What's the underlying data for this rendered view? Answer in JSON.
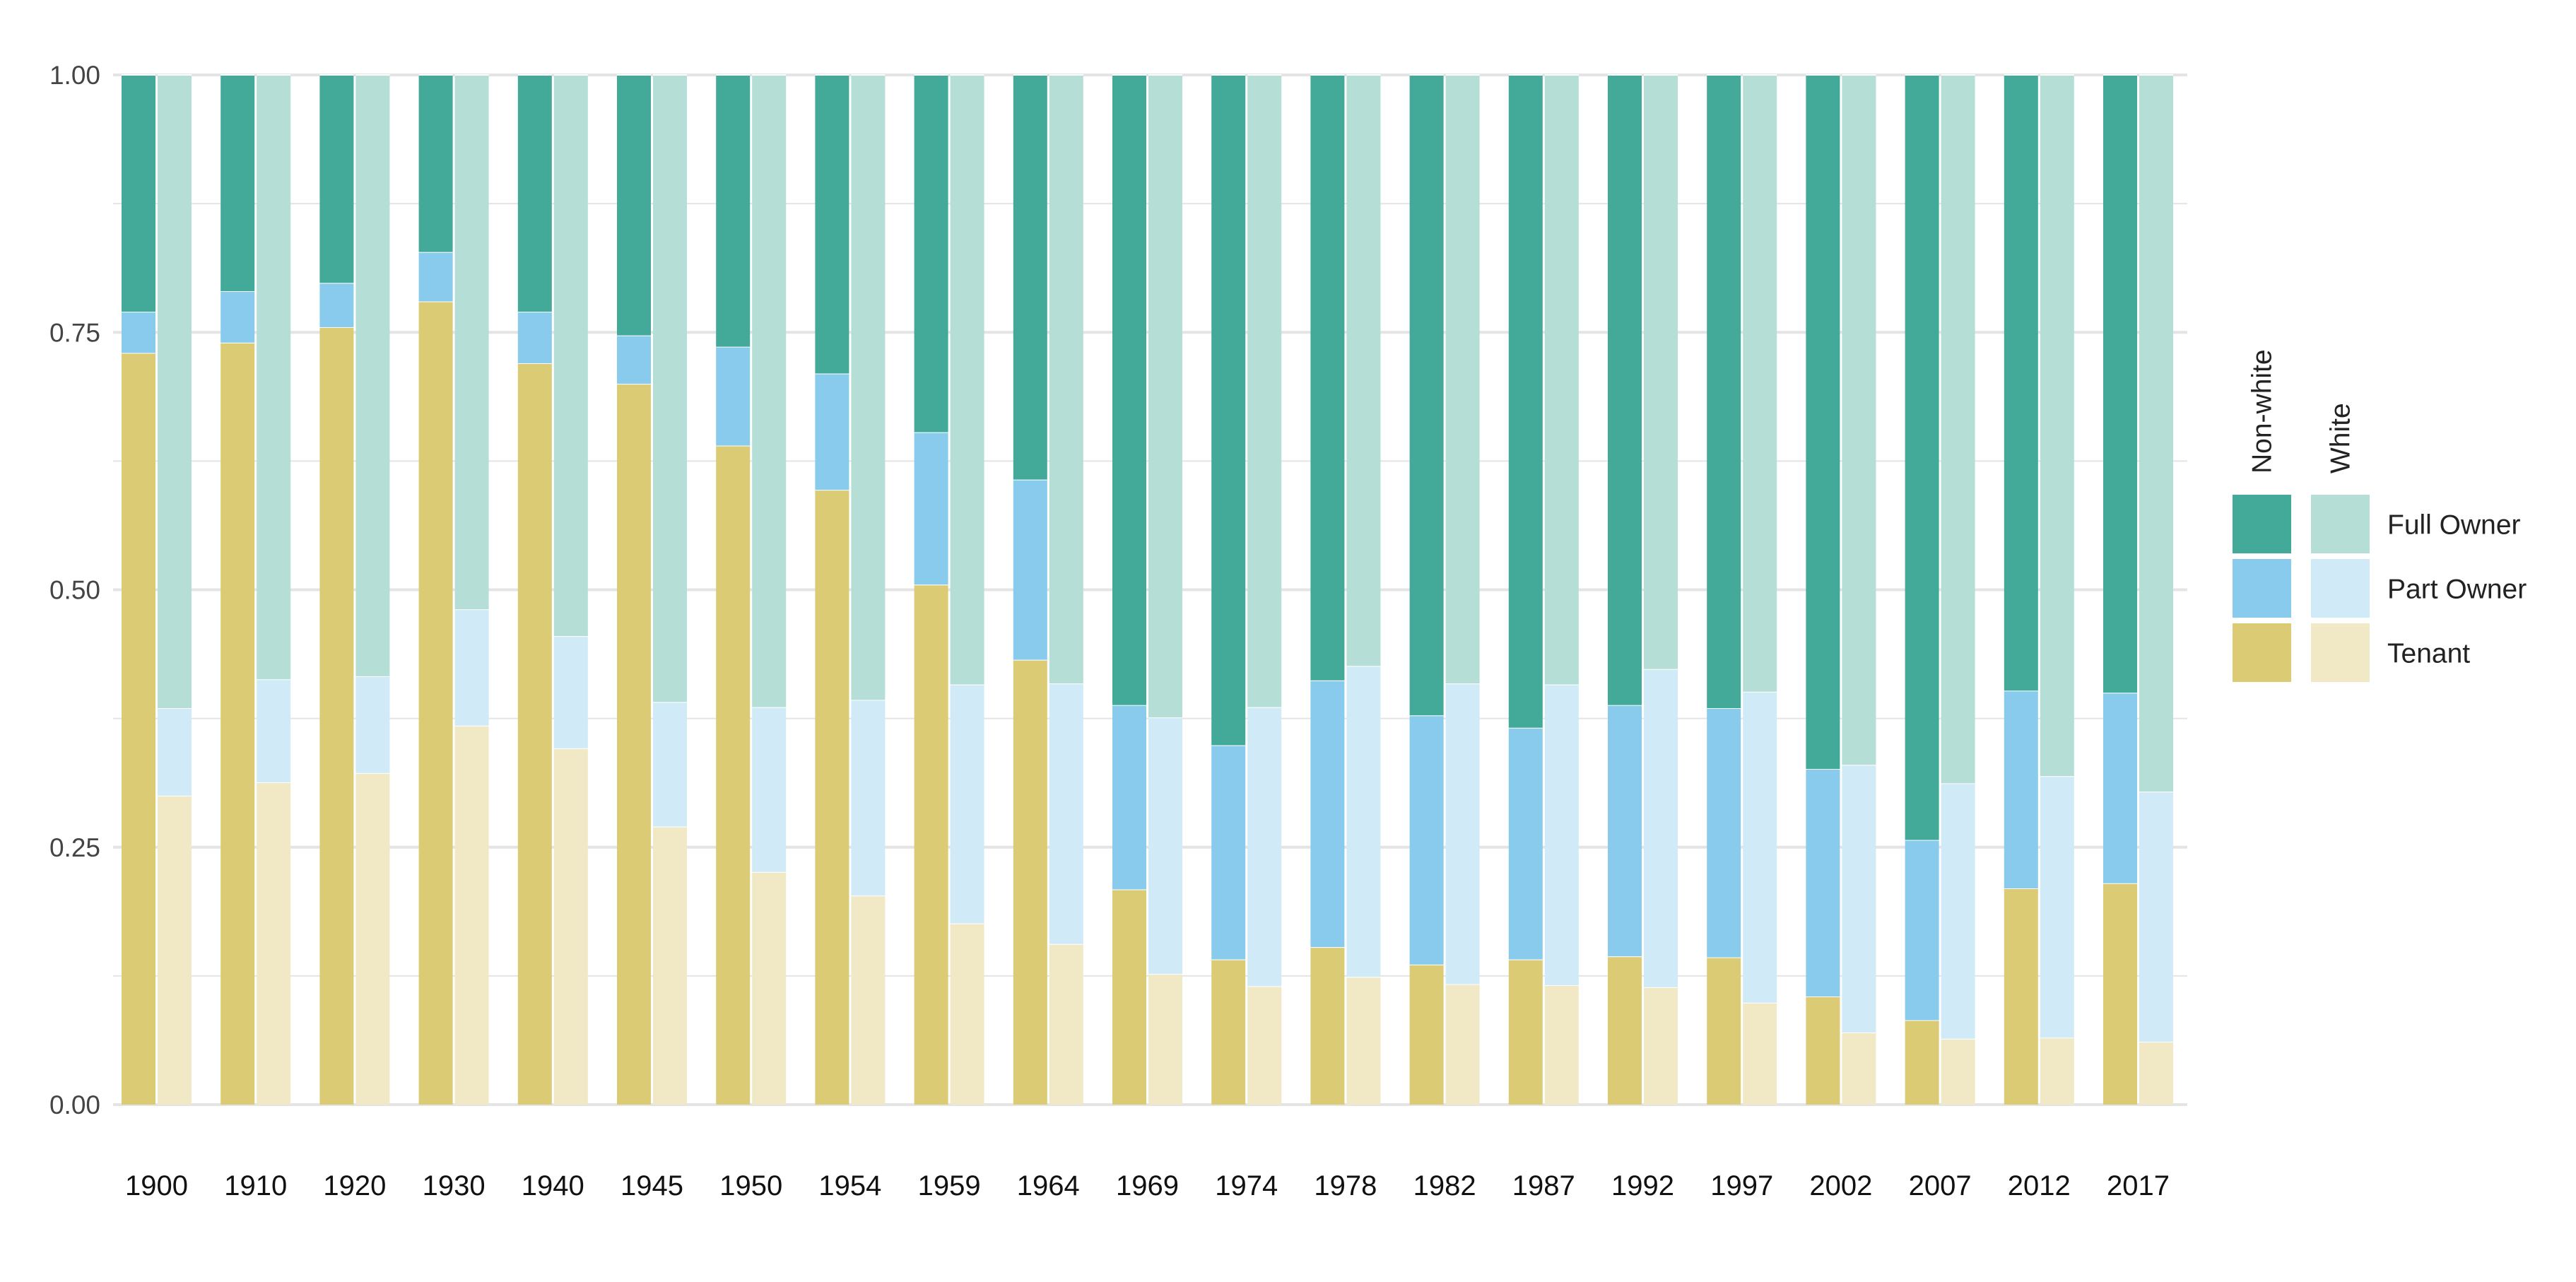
{
  "chart_data": {
    "type": "bar",
    "stacked": true,
    "grouped": true,
    "categories": [
      "1900",
      "1910",
      "1920",
      "1930",
      "1940",
      "1945",
      "1950",
      "1954",
      "1959",
      "1964",
      "1969",
      "1974",
      "1978",
      "1982",
      "1987",
      "1992",
      "1997",
      "2002",
      "2007",
      "2012",
      "2017"
    ],
    "groups": [
      "Non-white",
      "White"
    ],
    "segments": [
      "Tenant",
      "Part Owner",
      "Full Owner"
    ],
    "data": {
      "Non-white": {
        "Tenant": [
          0.73,
          0.74,
          0.755,
          0.78,
          0.72,
          0.7,
          0.64,
          0.597,
          0.505,
          0.432,
          0.209,
          0.141,
          0.153,
          0.136,
          0.141,
          0.144,
          0.143,
          0.105,
          0.082,
          0.21,
          0.215
        ],
        "Part Owner": [
          0.04,
          0.05,
          0.043,
          0.048,
          0.05,
          0.047,
          0.096,
          0.113,
          0.148,
          0.175,
          0.179,
          0.208,
          0.259,
          0.242,
          0.225,
          0.244,
          0.242,
          0.221,
          0.175,
          0.192,
          0.185
        ],
        "Full Owner": [
          0.23,
          0.21,
          0.202,
          0.172,
          0.23,
          0.253,
          0.264,
          0.29,
          0.347,
          0.393,
          0.612,
          0.651,
          0.588,
          0.622,
          0.634,
          0.612,
          0.615,
          0.674,
          0.743,
          0.598,
          0.6
        ]
      },
      "White": {
        "Tenant": [
          0.3,
          0.313,
          0.322,
          0.368,
          0.346,
          0.27,
          0.226,
          0.203,
          0.176,
          0.156,
          0.127,
          0.115,
          0.124,
          0.117,
          0.116,
          0.114,
          0.099,
          0.07,
          0.064,
          0.065,
          0.061
        ],
        "Part Owner": [
          0.085,
          0.1,
          0.094,
          0.113,
          0.109,
          0.121,
          0.16,
          0.19,
          0.232,
          0.253,
          0.249,
          0.271,
          0.302,
          0.292,
          0.292,
          0.309,
          0.302,
          0.26,
          0.248,
          0.254,
          0.243
        ],
        "Full Owner": [
          0.615,
          0.587,
          0.584,
          0.519,
          0.545,
          0.609,
          0.614,
          0.607,
          0.592,
          0.591,
          0.624,
          0.614,
          0.574,
          0.591,
          0.592,
          0.577,
          0.599,
          0.67,
          0.688,
          0.681,
          0.696
        ]
      }
    },
    "yticks": [
      "0.00",
      "0.25",
      "0.50",
      "0.75",
      "1.00"
    ],
    "ylim": [
      0,
      1
    ],
    "grid": true,
    "legend_placement": "right",
    "legend": {
      "headers": [
        "Non-white",
        "White"
      ],
      "labels": [
        "Full Owner",
        "Part Owner",
        "Tenant"
      ]
    },
    "colors": {
      "Non-white": {
        "Full Owner": "#43aa9a",
        "Part Owner": "#89cbec",
        "Tenant": "#dccb75"
      },
      "White": {
        "Full Owner": "#b4ded6",
        "Part Owner": "#d0ebf7",
        "Tenant": "#f1e9c6"
      },
      "grid": "#e4e4e4"
    }
  }
}
